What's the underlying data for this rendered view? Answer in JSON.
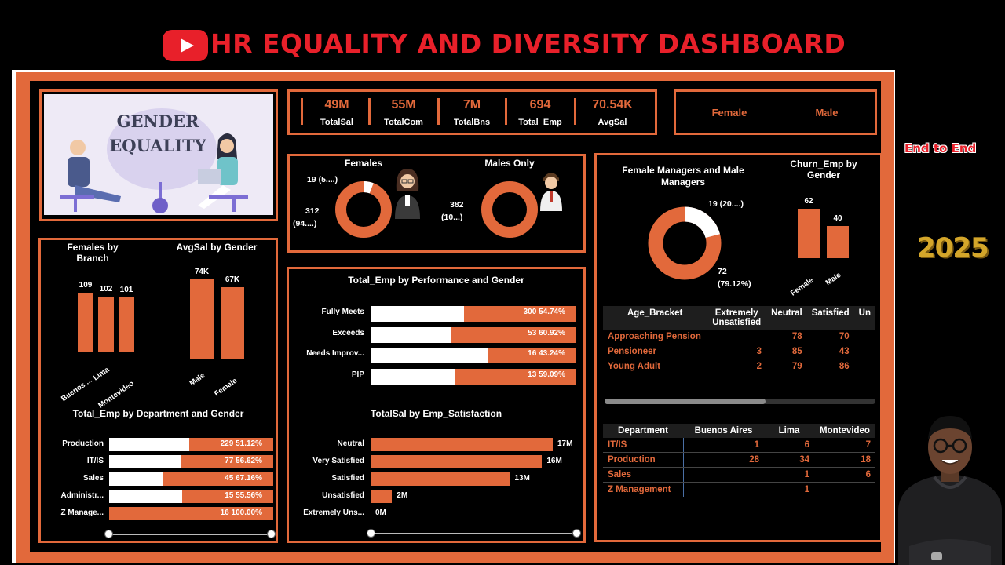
{
  "header": {
    "title": "HR EQUALITY AND DIVERSITY DASHBOARD",
    "logo_icon": "youtube-play-icon"
  },
  "hero": {
    "line1": "GENDER",
    "line2": "EQUALITY"
  },
  "kpis": [
    {
      "value": "49M",
      "label": "TotalSal"
    },
    {
      "value": "55M",
      "label": "TotalCom"
    },
    {
      "value": "7M",
      "label": "TotalBns"
    },
    {
      "value": "694",
      "label": "Total_Emp"
    },
    {
      "value": "70.54K",
      "label": "AvgSal"
    }
  ],
  "gender_slicer": {
    "female": "Female",
    "male": "Male"
  },
  "females_donut": {
    "title": "Females",
    "small_label": "19 (5....)",
    "large_label_1": "312",
    "large_label_2": "(94....)",
    "small_value": 19,
    "large_value": 312
  },
  "males_donut": {
    "title": "Males Only",
    "label_1": "382",
    "label_2": "(10...)"
  },
  "managers_donut": {
    "title_1": "Female Managers and Male",
    "title_2": "Managers",
    "small_label": "19 (20....)",
    "large_label_1": "72",
    "large_label_2": "(79.12%)",
    "small_value": 19,
    "large_value": 72
  },
  "churn_chart": {
    "title_1": "Churn_Emp by",
    "title_2": "Gender",
    "categories": [
      "Female",
      "Male"
    ],
    "values": [
      62,
      40
    ],
    "value_labels": [
      "62",
      "40"
    ]
  },
  "females_by_branch": {
    "title_1": "Females by",
    "title_2": "Branch",
    "categories": [
      "Buenos ...",
      "Lima",
      "Montevideo"
    ],
    "values": [
      109,
      102,
      101
    ],
    "value_labels": [
      "109",
      "102",
      "101"
    ]
  },
  "avgsal_by_gender": {
    "title": "AvgSal by Gender",
    "categories": [
      "Male",
      "Female"
    ],
    "values": [
      74,
      67
    ],
    "value_labels": [
      "74K",
      "67K"
    ]
  },
  "emp_by_department": {
    "title": "Total_Emp by Department and Gender",
    "rows": [
      {
        "label": "Production",
        "female_share": 48.88,
        "text": "229 51.12%"
      },
      {
        "label": "IT/IS",
        "female_share": 43.38,
        "text": "77 56.62%"
      },
      {
        "label": "Sales",
        "female_share": 32.84,
        "text": "45 67.16%"
      },
      {
        "label": "Administr...",
        "female_share": 44.44,
        "text": "15 55.56%"
      },
      {
        "label": "Z Manage...",
        "female_share": 0,
        "text": "16 100.00%"
      }
    ]
  },
  "emp_by_performance": {
    "title": "Total_Emp by Performance and Gender",
    "rows": [
      {
        "label": "Fully Meets",
        "female_share": 45.26,
        "text": "300 54.74%"
      },
      {
        "label": "Exceeds",
        "female_share": 39.08,
        "text": "53 60.92%"
      },
      {
        "label": "Needs Improv...",
        "female_share": 56.76,
        "text": "16 43.24%"
      },
      {
        "label": "PIP",
        "female_share": 40.91,
        "text": "13 59.09%"
      }
    ]
  },
  "sal_by_satisfaction": {
    "title": "TotalSal by Emp_Satisfaction",
    "rows": [
      {
        "label": "Neutral",
        "value": 17,
        "text": "17M"
      },
      {
        "label": "Very Satisfied",
        "value": 16,
        "text": "16M"
      },
      {
        "label": "Satisfied",
        "value": 13,
        "text": "13M"
      },
      {
        "label": "Unsatisfied",
        "value": 2,
        "text": "2M"
      },
      {
        "label": "Extremely Uns...",
        "value": 0,
        "text": "0M"
      }
    ],
    "max": 17
  },
  "age_matrix": {
    "headers": [
      "Age_Bracket",
      "Extremely Unsatisfied",
      "Neutral",
      "Satisfied",
      "Un"
    ],
    "rows": [
      [
        "Approaching Pension",
        "",
        "78",
        "70",
        ""
      ],
      [
        "Pensioneer",
        "3",
        "85",
        "43",
        ""
      ],
      [
        "Young Adult",
        "2",
        "79",
        "86",
        ""
      ]
    ]
  },
  "dept_matrix": {
    "headers": [
      "Department",
      "Buenos Aires",
      "Lima",
      "Montevideo"
    ],
    "rows": [
      [
        "IT/IS",
        "1",
        "6",
        "7"
      ],
      [
        "Production",
        "28",
        "34",
        "18"
      ],
      [
        "Sales",
        "",
        "1",
        "6"
      ],
      [
        "Z Management",
        "",
        "1",
        ""
      ]
    ]
  },
  "side": {
    "end_to_end": "End to End",
    "year": "2025"
  },
  "colors": {
    "accent": "#e2693b",
    "title_red": "#e8202a"
  }
}
